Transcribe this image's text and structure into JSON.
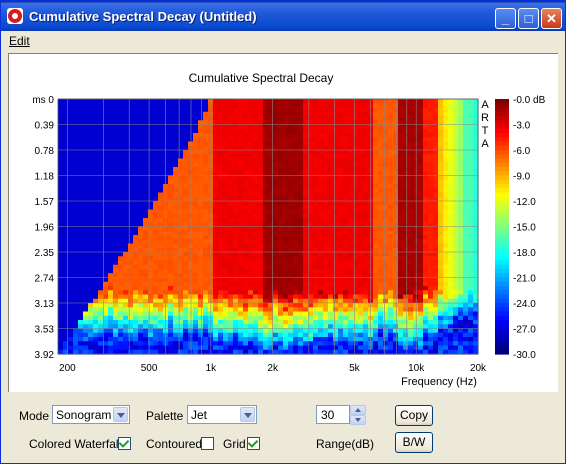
{
  "window": {
    "title": "Cumulative Spectral Decay  (Untitled)",
    "buttons": {
      "minimize": "_",
      "maximize": "□",
      "close": "✕"
    }
  },
  "menu": {
    "edit": "Edit"
  },
  "plot": {
    "title": "Cumulative Spectral Decay",
    "watermark": "ARTA",
    "y_ticks": [
      "ms 0",
      "0.39",
      "0.78",
      "1.18",
      "1.57",
      "1.96",
      "2.35",
      "2.74",
      "3.13",
      "3.53",
      "3.92"
    ],
    "x_ticks": [
      "200",
      "500",
      "1k",
      "2k",
      "5k",
      "10k",
      "20k"
    ],
    "x_label": "Frequency (Hz)",
    "colorbar_labels": [
      "-0.0 dB",
      "-3.0",
      "-6.0",
      "-9.0",
      "-12.0",
      "-15.0",
      "-18.0",
      "-21.0",
      "-24.0",
      "-27.0",
      "-30.0"
    ]
  },
  "controls": {
    "mode_label": "Mode",
    "mode_value": "Sonogram",
    "palette_label": "Palette",
    "palette_value": "Jet",
    "range_value": "30",
    "range_label": "Range(dB)",
    "copy_label": "Copy",
    "bw_label": "B/W",
    "colored_waterfall_label": "Colored Waterfall",
    "colored_waterfall_checked": true,
    "contoured_label": "Contoured",
    "contoured_checked": false,
    "grid_label": "Grid",
    "grid_checked": true
  }
}
